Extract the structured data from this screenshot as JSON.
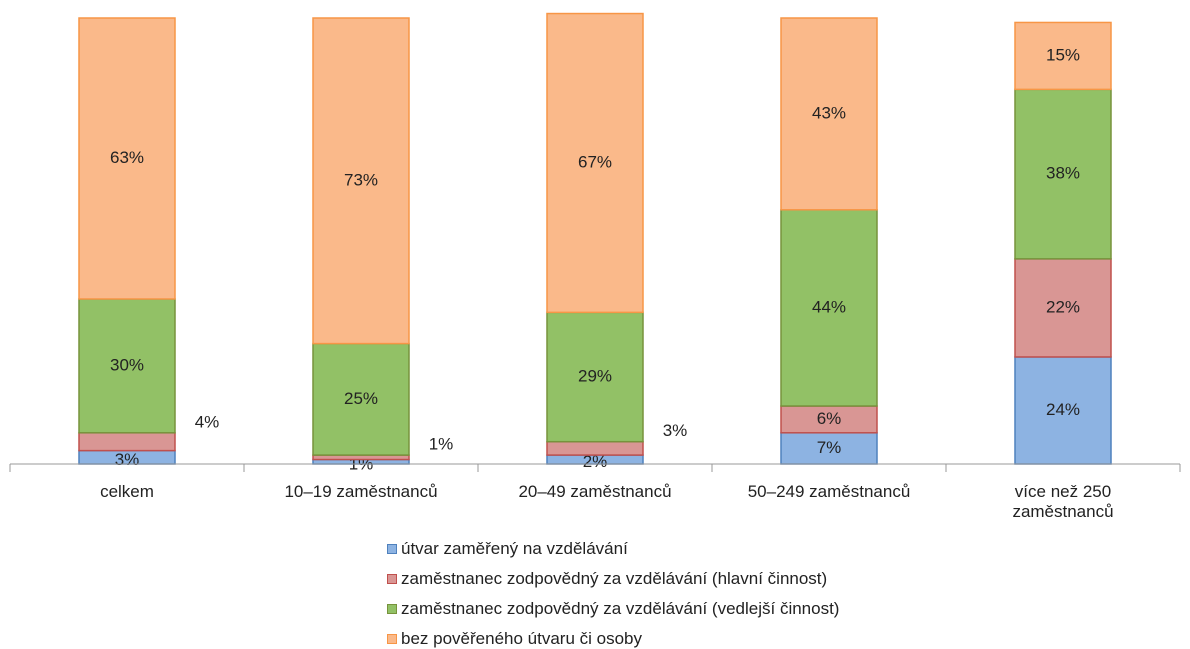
{
  "chart_data": {
    "type": "stacked-bar",
    "categories": [
      "celkem",
      "10–19 zaměstnanců",
      "20–49 zaměstnanců",
      "50–249 zaměstnanců",
      "více než 250 zaměstnanců"
    ],
    "series": [
      {
        "name": "útvar zaměřený na vzdělávání",
        "color": "#8db3e2",
        "border": "#4f81bd",
        "values": [
          3,
          1,
          2,
          7,
          24
        ],
        "value_labels": [
          "3%",
          "1%",
          "2%",
          "7%",
          "24%"
        ]
      },
      {
        "name": "zaměstnanec zodpovědný za vzdělávání (hlavní činnost)",
        "color": "#d99694",
        "border": "#c0504d",
        "values": [
          4,
          1,
          3,
          6,
          22
        ],
        "value_labels": [
          "4%",
          "1%",
          "3%",
          "6%",
          "22%"
        ]
      },
      {
        "name": "zaměstnanec zodpovědný za vzdělávání (vedlejší činnost)",
        "color": "#92c166",
        "border": "#77933c",
        "values": [
          30,
          25,
          29,
          44,
          38
        ],
        "value_labels": [
          "30%",
          "25%",
          "29%",
          "44%",
          "38%"
        ]
      },
      {
        "name": "bez pověřeného útvaru či osoby",
        "color": "#fab98a",
        "border": "#f79646",
        "values": [
          63,
          73,
          67,
          43,
          15
        ],
        "value_labels": [
          "63%",
          "73%",
          "67%",
          "43%",
          "15%"
        ]
      }
    ],
    "ylim": [
      0,
      100
    ],
    "legend": "bottom"
  }
}
